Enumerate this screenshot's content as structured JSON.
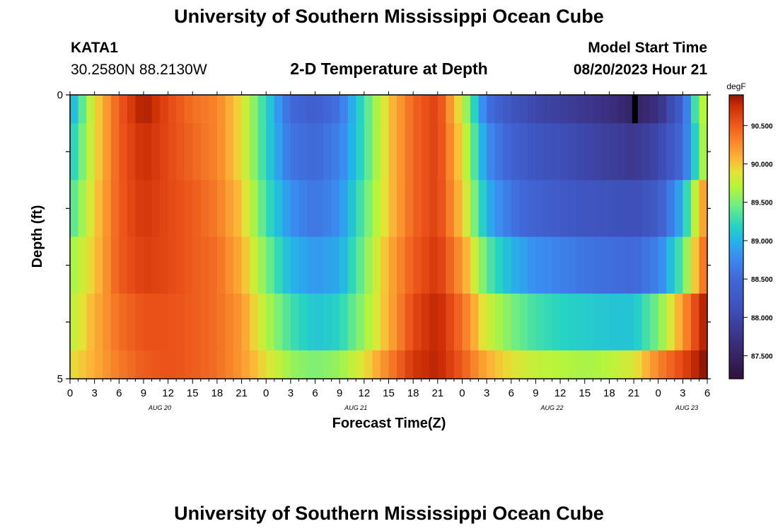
{
  "header": {
    "title": "University of Southern Mississippi Ocean Cube",
    "station_id": "KATA1",
    "coords": "30.2580N  88.2130W",
    "plot_title": "2-D Temperature at Depth",
    "model_start_label": "Model Start Time",
    "model_start_value": "08/20/2023 Hour 21"
  },
  "footer": {
    "title": "University of Southern Mississippi Ocean Cube"
  },
  "chart_data": {
    "type": "heatmap",
    "title": "2-D Temperature at Depth",
    "xlabel": "Forecast Time(Z)",
    "ylabel": "Depth (ft)",
    "xlim": [
      0,
      78
    ],
    "ylim": [
      0,
      5
    ],
    "y_tick_labels": [
      "0",
      "5"
    ],
    "x_ticks": [
      0,
      3,
      6,
      9,
      12,
      15,
      18,
      21,
      24,
      27,
      30,
      33,
      36,
      39,
      42,
      45,
      48,
      51,
      54,
      57,
      60,
      63,
      66,
      69,
      72,
      75,
      78
    ],
    "x_tick_labels": [
      "0",
      "3",
      "6",
      "9",
      "12",
      "15",
      "18",
      "21",
      "0",
      "3",
      "6",
      "9",
      "12",
      "15",
      "18",
      "21",
      "0",
      "3",
      "6",
      "9",
      "12",
      "15",
      "18",
      "21",
      "0",
      "3",
      "6"
    ],
    "date_labels": [
      {
        "label": "AUG 20",
        "hour": 11
      },
      {
        "label": "AUG 21",
        "hour": 35
      },
      {
        "label": "AUG 22",
        "hour": 59
      },
      {
        "label": "AUG 23",
        "hour": 75.5
      }
    ],
    "depth_layers": [
      {
        "top": 0,
        "bottom": 0.5,
        "keys": [
          [
            0,
            88.9
          ],
          [
            3,
            89.9
          ],
          [
            6,
            90.5
          ],
          [
            9,
            90.85
          ],
          [
            12,
            90.6
          ],
          [
            15,
            90.4
          ],
          [
            18,
            90.3
          ],
          [
            21,
            89.9
          ],
          [
            24,
            89.2
          ],
          [
            27,
            88.5
          ],
          [
            30,
            88.35
          ],
          [
            33,
            88.6
          ],
          [
            36,
            89.3
          ],
          [
            39,
            90.0
          ],
          [
            42,
            90.45
          ],
          [
            45,
            90.65
          ],
          [
            48,
            89.8
          ],
          [
            51,
            88.6
          ],
          [
            54,
            88.2
          ],
          [
            57,
            88.0
          ],
          [
            60,
            87.9
          ],
          [
            63,
            87.8
          ],
          [
            66,
            87.7
          ],
          [
            69,
            87.5
          ],
          [
            72,
            87.7
          ],
          [
            75,
            88.4
          ],
          [
            77,
            89.6
          ],
          [
            78,
            89.8
          ]
        ]
      },
      {
        "top": 0.5,
        "bottom": 1.5,
        "keys": [
          [
            0,
            89.1
          ],
          [
            3,
            89.9
          ],
          [
            6,
            90.5
          ],
          [
            9,
            90.75
          ],
          [
            12,
            90.6
          ],
          [
            15,
            90.45
          ],
          [
            18,
            90.3
          ],
          [
            21,
            89.9
          ],
          [
            24,
            89.2
          ],
          [
            27,
            88.6
          ],
          [
            30,
            88.5
          ],
          [
            33,
            88.7
          ],
          [
            36,
            89.3
          ],
          [
            39,
            90.0
          ],
          [
            42,
            90.45
          ],
          [
            45,
            90.65
          ],
          [
            48,
            89.9
          ],
          [
            51,
            88.8
          ],
          [
            54,
            88.4
          ],
          [
            57,
            88.2
          ],
          [
            60,
            88.1
          ],
          [
            63,
            88.0
          ],
          [
            66,
            87.9
          ],
          [
            69,
            87.8
          ],
          [
            72,
            88.0
          ],
          [
            75,
            88.5
          ],
          [
            77,
            89.4
          ],
          [
            78,
            89.9
          ]
        ]
      },
      {
        "top": 1.5,
        "bottom": 2.5,
        "keys": [
          [
            0,
            89.3
          ],
          [
            3,
            89.95
          ],
          [
            6,
            90.5
          ],
          [
            9,
            90.7
          ],
          [
            12,
            90.6
          ],
          [
            15,
            90.5
          ],
          [
            18,
            90.35
          ],
          [
            21,
            90.0
          ],
          [
            24,
            89.3
          ],
          [
            27,
            88.8
          ],
          [
            30,
            88.6
          ],
          [
            33,
            88.8
          ],
          [
            36,
            89.4
          ],
          [
            39,
            90.0
          ],
          [
            42,
            90.45
          ],
          [
            45,
            90.65
          ],
          [
            48,
            90.0
          ],
          [
            51,
            89.0
          ],
          [
            54,
            88.6
          ],
          [
            57,
            88.4
          ],
          [
            60,
            88.3
          ],
          [
            63,
            88.2
          ],
          [
            66,
            88.15
          ],
          [
            69,
            88.1
          ],
          [
            72,
            88.3
          ],
          [
            75,
            89.0
          ],
          [
            77,
            90.0
          ],
          [
            78,
            90.3
          ]
        ]
      },
      {
        "top": 2.5,
        "bottom": 3.5,
        "keys": [
          [
            0,
            89.6
          ],
          [
            3,
            90.0
          ],
          [
            6,
            90.5
          ],
          [
            9,
            90.65
          ],
          [
            12,
            90.6
          ],
          [
            15,
            90.5
          ],
          [
            18,
            90.4
          ],
          [
            21,
            90.1
          ],
          [
            24,
            89.5
          ],
          [
            27,
            89.0
          ],
          [
            30,
            88.85
          ],
          [
            33,
            88.95
          ],
          [
            36,
            89.5
          ],
          [
            39,
            90.1
          ],
          [
            42,
            90.5
          ],
          [
            45,
            90.7
          ],
          [
            48,
            90.2
          ],
          [
            51,
            89.4
          ],
          [
            54,
            89.0
          ],
          [
            57,
            88.8
          ],
          [
            60,
            88.7
          ],
          [
            63,
            88.6
          ],
          [
            66,
            88.55
          ],
          [
            69,
            88.5
          ],
          [
            72,
            88.7
          ],
          [
            75,
            89.4
          ],
          [
            77,
            90.2
          ],
          [
            78,
            90.5
          ]
        ]
      },
      {
        "top": 3.5,
        "bottom": 4.5,
        "keys": [
          [
            0,
            89.7
          ],
          [
            3,
            90.1
          ],
          [
            6,
            90.4
          ],
          [
            9,
            90.55
          ],
          [
            12,
            90.55
          ],
          [
            15,
            90.5
          ],
          [
            18,
            90.4
          ],
          [
            21,
            90.2
          ],
          [
            24,
            89.7
          ],
          [
            27,
            89.3
          ],
          [
            30,
            89.1
          ],
          [
            33,
            89.2
          ],
          [
            36,
            89.6
          ],
          [
            39,
            90.1
          ],
          [
            42,
            90.6
          ],
          [
            45,
            90.8
          ],
          [
            48,
            90.4
          ],
          [
            51,
            89.8
          ],
          [
            54,
            89.5
          ],
          [
            57,
            89.3
          ],
          [
            60,
            89.2
          ],
          [
            63,
            89.15
          ],
          [
            66,
            89.1
          ],
          [
            69,
            89.1
          ],
          [
            72,
            89.5
          ],
          [
            75,
            90.2
          ],
          [
            77,
            90.7
          ],
          [
            78,
            90.9
          ]
        ]
      },
      {
        "top": 4.5,
        "bottom": 5,
        "keys": [
          [
            0,
            89.9
          ],
          [
            3,
            90.1
          ],
          [
            6,
            90.35
          ],
          [
            9,
            90.5
          ],
          [
            12,
            90.55
          ],
          [
            15,
            90.5
          ],
          [
            18,
            90.4
          ],
          [
            21,
            90.2
          ],
          [
            24,
            89.9
          ],
          [
            27,
            89.6
          ],
          [
            30,
            89.5
          ],
          [
            33,
            89.6
          ],
          [
            36,
            89.9
          ],
          [
            39,
            90.3
          ],
          [
            42,
            90.7
          ],
          [
            45,
            90.8
          ],
          [
            48,
            90.5
          ],
          [
            51,
            90.1
          ],
          [
            54,
            89.9
          ],
          [
            57,
            89.75
          ],
          [
            60,
            89.7
          ],
          [
            63,
            89.65
          ],
          [
            66,
            89.7
          ],
          [
            69,
            89.85
          ],
          [
            72,
            90.3
          ],
          [
            75,
            90.6
          ],
          [
            77,
            90.85
          ],
          [
            78,
            91.0
          ]
        ]
      }
    ],
    "missing_segment": {
      "depth_top": 0,
      "depth_bottom": 0.5,
      "hour_start": 68.8,
      "hour_end": 69.5,
      "color": "#000000"
    },
    "colorbar": {
      "unit": "degF",
      "vmin": 87.2,
      "vmax": 90.9,
      "ticks": [
        87.5,
        88.0,
        88.5,
        89.0,
        89.5,
        90.0,
        90.5
      ],
      "tick_labels": [
        "87.500",
        "88.000",
        "88.500",
        "89.000",
        "89.500",
        "90.000",
        "90.500"
      ],
      "stops": [
        {
          "v": 87.2,
          "c": "#30123b"
        },
        {
          "v": 87.7,
          "c": "#3b2f80"
        },
        {
          "v": 88.1,
          "c": "#3e4fb8"
        },
        {
          "v": 88.5,
          "c": "#4168d8"
        },
        {
          "v": 88.8,
          "c": "#3a8ef2"
        },
        {
          "v": 89.0,
          "c": "#24b5e8"
        },
        {
          "v": 89.2,
          "c": "#27d4c2"
        },
        {
          "v": 89.45,
          "c": "#6ced86"
        },
        {
          "v": 89.7,
          "c": "#b7f53b"
        },
        {
          "v": 89.9,
          "c": "#e4e235"
        },
        {
          "v": 90.05,
          "c": "#fcb937"
        },
        {
          "v": 90.3,
          "c": "#f8842a"
        },
        {
          "v": 90.55,
          "c": "#ea5119"
        },
        {
          "v": 90.75,
          "c": "#cc2d06"
        },
        {
          "v": 90.9,
          "c": "#901703"
        }
      ]
    }
  }
}
